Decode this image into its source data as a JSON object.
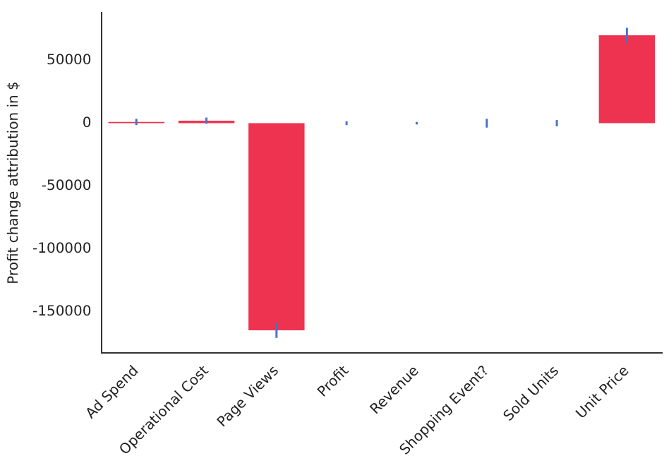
{
  "chart_data": {
    "type": "bar",
    "ylabel": "Profit change attribution in $",
    "categories": [
      "Ad Spend",
      "Operational Cost",
      "Page Views",
      "Profit",
      "Revenue",
      "Shopping Event?",
      "Sold Units",
      "Unit Price"
    ],
    "series": [
      {
        "color": "#ed3350",
        "values": [
          1000,
          2000,
          -165000,
          0,
          0,
          0,
          0,
          70000
        ],
        "errors": [
          2500,
          2500,
          6000,
          1500,
          1000,
          3500,
          2500,
          6000
        ]
      }
    ],
    "ylim": [
      -183000,
      88000
    ],
    "yticks": [
      -150000,
      -100000,
      -50000,
      0,
      50000
    ],
    "grid": false,
    "legend": false
  }
}
